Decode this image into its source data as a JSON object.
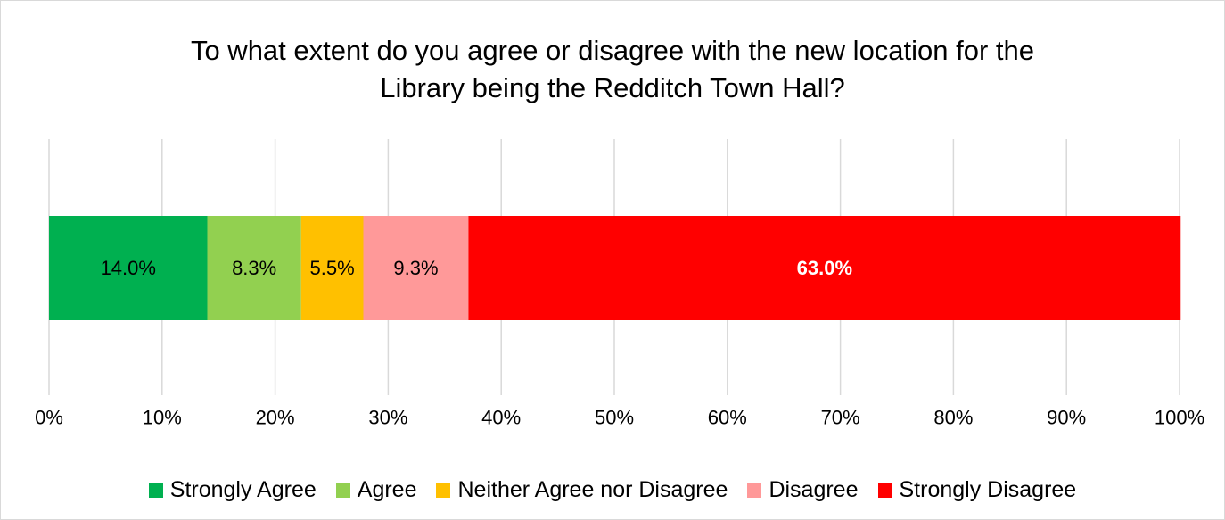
{
  "chart_data": {
    "type": "bar",
    "orientation": "horizontal",
    "stacked": true,
    "title": "To what extent do you agree or disagree with the new location for the Library being the Redditch Town Hall?",
    "title_lines": [
      "To what extent do you agree or disagree with the new location for the",
      "Library being the Redditch Town Hall?"
    ],
    "xlim": [
      0,
      100
    ],
    "x_tick_labels": [
      "0%",
      "10%",
      "20%",
      "30%",
      "40%",
      "50%",
      "60%",
      "70%",
      "80%",
      "90%",
      "100%"
    ],
    "grid": true,
    "legend_position": "bottom",
    "series": [
      {
        "name": "Strongly Agree",
        "value": 14.0,
        "label": "14.0%",
        "color": "#00b050",
        "label_color": "#000000",
        "label_bold": false
      },
      {
        "name": "Agree",
        "value": 8.3,
        "label": "8.3%",
        "color": "#92d050",
        "label_color": "#000000",
        "label_bold": false
      },
      {
        "name": "Neither Agree nor Disagree",
        "value": 5.5,
        "label": "5.5%",
        "color": "#ffc000",
        "label_color": "#000000",
        "label_bold": false
      },
      {
        "name": "Disagree",
        "value": 9.3,
        "label": "9.3%",
        "color": "#ff9999",
        "label_color": "#000000",
        "label_bold": false
      },
      {
        "name": "Strongly Disagree",
        "value": 63.0,
        "label": "63.0%",
        "color": "#ff0000",
        "label_color": "#ffffff",
        "label_bold": true
      }
    ]
  }
}
